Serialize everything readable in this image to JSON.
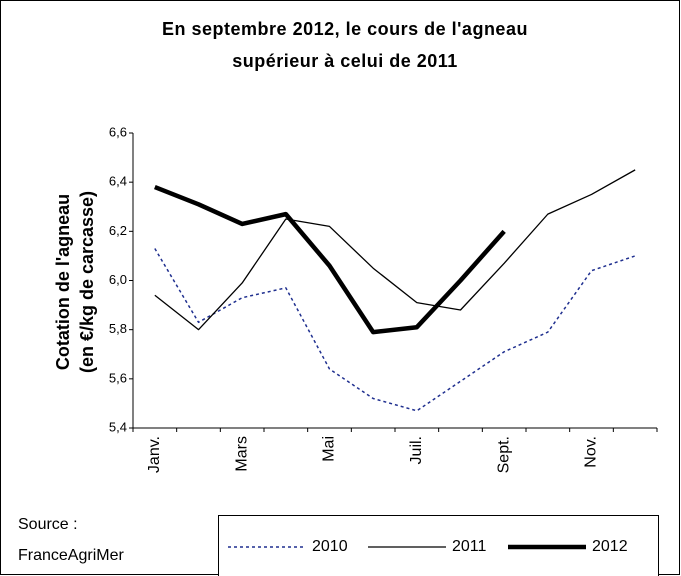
{
  "chart_data": {
    "type": "line",
    "title": [
      "En septembre 2012, le cours de l'agneau",
      "supérieur à celui de 2011"
    ],
    "y_label": [
      "Cotation de l'agneau",
      "(en €/kg de carcasse)"
    ],
    "source": [
      "Source :",
      "FranceAgriMer"
    ],
    "categories": [
      "Janv.",
      null,
      "Mars",
      null,
      "Mai",
      null,
      "Juil.",
      null,
      "Sept.",
      null,
      "Nov.",
      null
    ],
    "ylim": [
      5.4,
      6.6
    ],
    "yticks": [
      {
        "value": 5.4,
        "label": "5,4"
      },
      {
        "value": 5.6,
        "label": "5,6"
      },
      {
        "value": 5.8,
        "label": "5,8"
      },
      {
        "value": 6.0,
        "label": "6,0"
      },
      {
        "value": 6.2,
        "label": "6,2"
      },
      {
        "value": 6.4,
        "label": "6,4"
      },
      {
        "value": 6.6,
        "label": "6,6"
      }
    ],
    "series": [
      {
        "name": "2010",
        "color": "#1f2f8f",
        "style": "dashed",
        "values": [
          6.13,
          5.83,
          5.93,
          5.97,
          5.64,
          5.52,
          5.47,
          5.59,
          5.71,
          5.79,
          6.04,
          6.1
        ]
      },
      {
        "name": "2011",
        "color": "#000000",
        "style": "solid",
        "values": [
          5.94,
          5.8,
          5.99,
          6.25,
          6.22,
          6.05,
          5.91,
          5.88,
          6.07,
          6.27,
          6.35,
          6.45
        ]
      },
      {
        "name": "2012",
        "color": "#000000",
        "style": "thick",
        "values": [
          6.38,
          6.31,
          6.23,
          6.27,
          6.06,
          5.79,
          5.81,
          6.0,
          6.2,
          null,
          null,
          null
        ]
      }
    ]
  }
}
